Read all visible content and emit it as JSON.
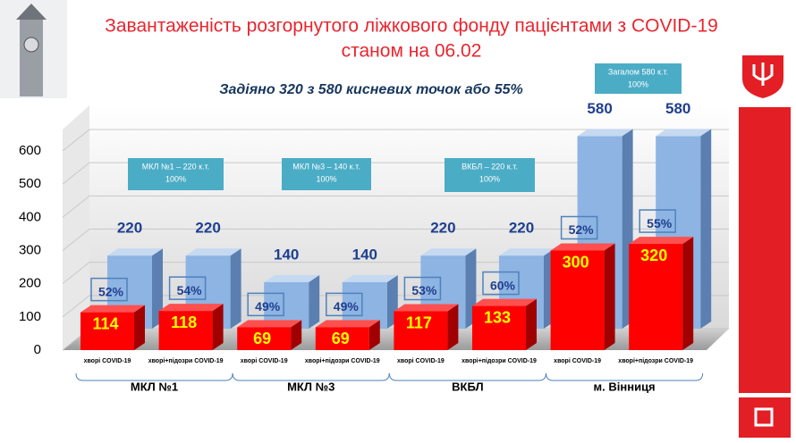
{
  "chart_data": {
    "type": "bar3d",
    "title": "Завантаженість розгорнутого ліжкового фонду пацієнтами з COVID-19",
    "subtitle": "станом на 06.02",
    "summary": "Задіяно 320 з 580 кисневих точок або 55%",
    "categories": [
      "хворі COVID-19",
      "хворі+підозри COVID-19",
      "хворі COVID-19",
      "хворі+підозри COVID-19",
      "хворі COVID-19",
      "хворі+підозри COVID-19",
      "хворі COVID-19",
      "хворі+підозри COVID-19"
    ],
    "groups": [
      "МКЛ №1",
      "МКЛ №3",
      "ВКБЛ",
      "м. Вінниця"
    ],
    "series": [
      {
        "color": "#8db4e2",
        "values": [
          220,
          220,
          140,
          140,
          220,
          220,
          580,
          580
        ]
      },
      {
        "color": "#ff0000",
        "values": [
          114,
          118,
          69,
          69,
          117,
          133,
          300,
          320
        ]
      }
    ],
    "percent_labels": [
      "52%",
      "54%",
      "49%",
      "49%",
      "53%",
      "60%",
      "52%",
      "55%"
    ],
    "callouts": [
      [
        "МКЛ №1 – 220 к.т.",
        "100%"
      ],
      [
        "МКЛ №3 – 140 к.т.",
        "100%"
      ],
      [
        "ВКБЛ – 220 к.т.",
        "100%"
      ],
      [
        "Загалом 580 к.т.",
        "100%"
      ]
    ],
    "ylim": [
      0,
      600
    ],
    "yticks": [
      0,
      100,
      200,
      300,
      400,
      500,
      600
    ],
    "grid": true
  }
}
